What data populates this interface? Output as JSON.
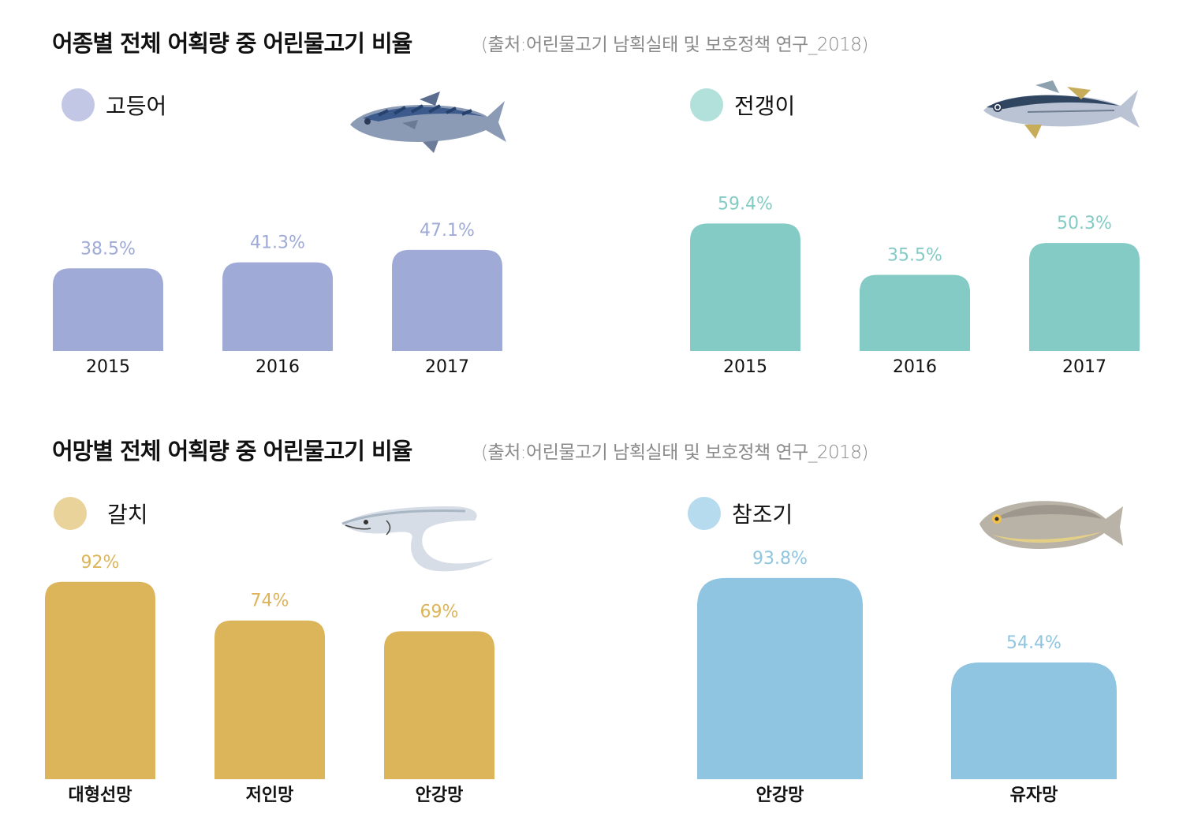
{
  "sections": [
    {
      "title": "어종별 전체 어획량 중 어린물고기 비율",
      "source": "(출처:어린물고기 남획실태 및 보호정책 연구_2018)"
    },
    {
      "title": "어망별 전체 어획량 중 어린물고기 비율",
      "source": "(출처:어린물고기 남획실태 및 보호정책 연구_2018)"
    }
  ],
  "legends": [
    {
      "label": "고등어",
      "color": "#c3c7e6",
      "icon": "mackerel-icon"
    },
    {
      "label": "전갱이",
      "color": "#b2e1db",
      "icon": "horse-mackerel-icon"
    },
    {
      "label": "갈치",
      "color": "#e9d39a",
      "icon": "hairtail-icon"
    },
    {
      "label": "참조기",
      "color": "#b6dbee",
      "icon": "yellow-croaker-icon"
    }
  ],
  "chart_data": [
    {
      "type": "bar",
      "name": "고등어",
      "categories": [
        "2015",
        "2016",
        "2017"
      ],
      "values": [
        38.5,
        41.3,
        47.1
      ],
      "labels": [
        "38.5%",
        "41.3%",
        "47.1%"
      ],
      "unit": "%",
      "bar_color": "#9faad6",
      "label_color": "#9faad6"
    },
    {
      "type": "bar",
      "name": "전갱이",
      "categories": [
        "2015",
        "2016",
        "2017"
      ],
      "values": [
        59.4,
        35.5,
        50.3
      ],
      "labels": [
        "59.4%",
        "35.5%",
        "50.3%"
      ],
      "unit": "%",
      "bar_color": "#83cbc4",
      "label_color": "#83cbc4"
    },
    {
      "type": "bar",
      "name": "갈치",
      "categories": [
        "대형선망",
        "저인망",
        "안강망"
      ],
      "values": [
        92,
        74,
        69
      ],
      "labels": [
        "92%",
        "74%",
        "69%"
      ],
      "unit": "%",
      "bar_color": "#dcb45a",
      "label_color": "#dcb45a"
    },
    {
      "type": "bar",
      "name": "참조기",
      "categories": [
        "안강망",
        "유자망"
      ],
      "values": [
        93.8,
        54.4
      ],
      "labels": [
        "93.8%",
        "54.4%"
      ],
      "unit": "%",
      "bar_color": "#8fc5e0",
      "label_color": "#8fc5e0"
    }
  ]
}
